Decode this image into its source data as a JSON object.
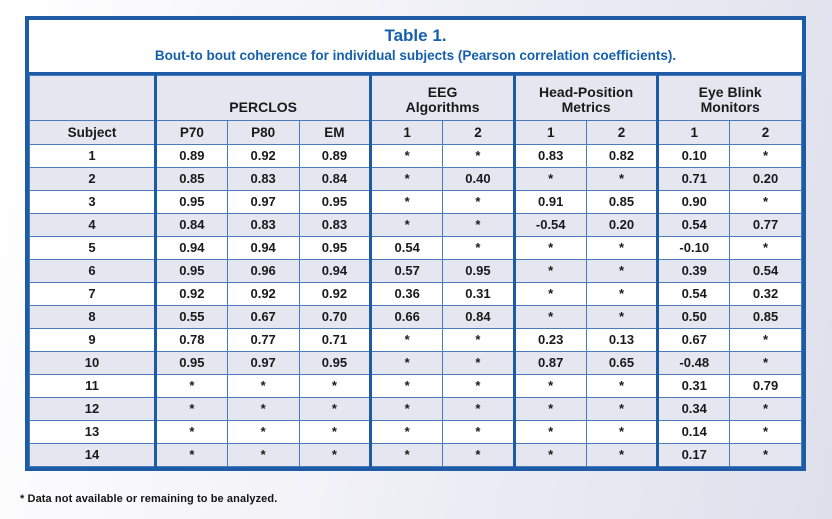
{
  "colors": {
    "frame_border_blue": "#1d5ba6",
    "grid_line_blue": "#4a7cbd",
    "title_text_blue": "#1560ae",
    "stripe_lavender": "#e6e6f1",
    "cell_text_black": "#1a1a1a"
  },
  "table": {
    "title": "Table 1.",
    "subtitle": "Bout-to bout coherence for individual subjects (Pearson correlation coefficients).",
    "groups": [
      {
        "line1": "",
        "line2": ""
      },
      {
        "line1": "",
        "line2": "PERCLOS"
      },
      {
        "line1": "EEG",
        "line2": "Algorithms"
      },
      {
        "line1": "Head-Position",
        "line2": "Metrics"
      },
      {
        "line1": "Eye Blink",
        "line2": "Monitors"
      }
    ],
    "columns": [
      "Subject",
      "P70",
      "P80",
      "EM",
      "1",
      "2",
      "1",
      "2",
      "1",
      "2"
    ],
    "rows": [
      [
        "1",
        "0.89",
        "0.92",
        "0.89",
        "*",
        "*",
        "0.83",
        "0.82",
        "0.10",
        "*"
      ],
      [
        "2",
        "0.85",
        "0.83",
        "0.84",
        "*",
        "0.40",
        "*",
        "*",
        "0.71",
        "0.20"
      ],
      [
        "3",
        "0.95",
        "0.97",
        "0.95",
        "*",
        "*",
        "0.91",
        "0.85",
        "0.90",
        "*"
      ],
      [
        "4",
        "0.84",
        "0.83",
        "0.83",
        "*",
        "*",
        "-0.54",
        "0.20",
        "0.54",
        "0.77"
      ],
      [
        "5",
        "0.94",
        "0.94",
        "0.95",
        "0.54",
        "*",
        "*",
        "*",
        "-0.10",
        "*"
      ],
      [
        "6",
        "0.95",
        "0.96",
        "0.94",
        "0.57",
        "0.95",
        "*",
        "*",
        "0.39",
        "0.54"
      ],
      [
        "7",
        "0.92",
        "0.92",
        "0.92",
        "0.36",
        "0.31",
        "*",
        "*",
        "0.54",
        "0.32"
      ],
      [
        "8",
        "0.55",
        "0.67",
        "0.70",
        "0.66",
        "0.84",
        "*",
        "*",
        "0.50",
        "0.85"
      ],
      [
        "9",
        "0.78",
        "0.77",
        "0.71",
        "*",
        "*",
        "0.23",
        "0.13",
        "0.67",
        "*"
      ],
      [
        "10",
        "0.95",
        "0.97",
        "0.95",
        "*",
        "*",
        "0.87",
        "0.65",
        "-0.48",
        "*"
      ],
      [
        "11",
        "*",
        "*",
        "*",
        "*",
        "*",
        "*",
        "*",
        "0.31",
        "0.79"
      ],
      [
        "12",
        "*",
        "*",
        "*",
        "*",
        "*",
        "*",
        "*",
        "0.34",
        "*"
      ],
      [
        "13",
        "*",
        "*",
        "*",
        "*",
        "*",
        "*",
        "*",
        "0.14",
        "*"
      ],
      [
        "14",
        "*",
        "*",
        "*",
        "*",
        "*",
        "*",
        "*",
        "0.17",
        "*"
      ]
    ]
  },
  "footnote": "* Data not available or remaining to be analyzed."
}
